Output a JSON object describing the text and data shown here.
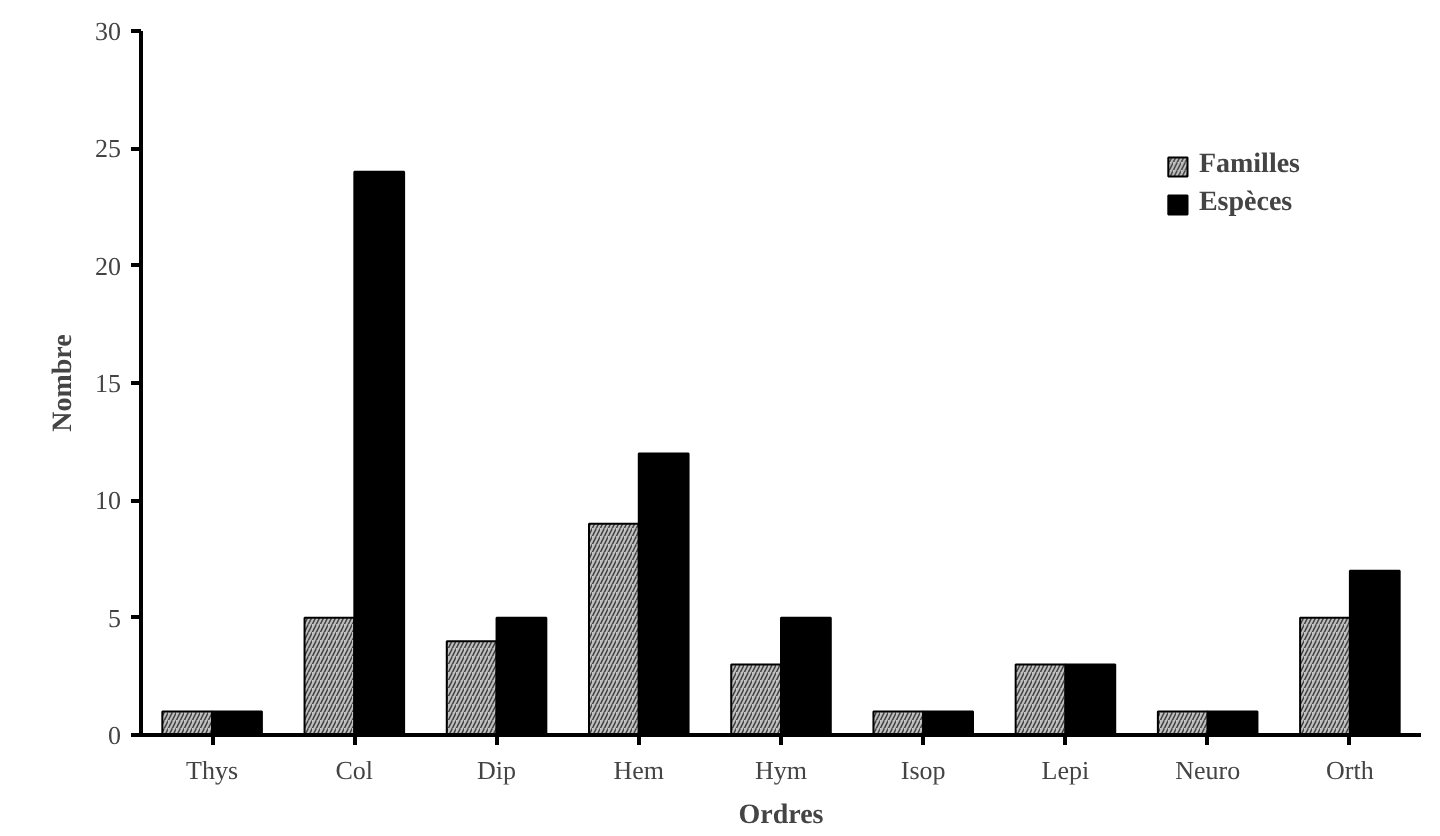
{
  "chart_data": {
    "type": "bar",
    "xlabel": "Ordres",
    "ylabel": "Nombre",
    "categories": [
      "Thys",
      "Col",
      "Dip",
      "Hem",
      "Hym",
      "Isop",
      "Lepi",
      "Neuro",
      "Orth"
    ],
    "series": [
      {
        "name": "Familles",
        "color": "#c0c0c0",
        "values": [
          1,
          5,
          4,
          9,
          3,
          1,
          3,
          1,
          5
        ]
      },
      {
        "name": "Espèces",
        "color": "#000000",
        "values": [
          1,
          24,
          5,
          12,
          5,
          1,
          3,
          1,
          7
        ]
      }
    ],
    "ylim": [
      0,
      30
    ],
    "yticks": [
      0,
      5,
      10,
      15,
      20,
      25,
      30
    ],
    "grid": false,
    "legend": "top right"
  }
}
